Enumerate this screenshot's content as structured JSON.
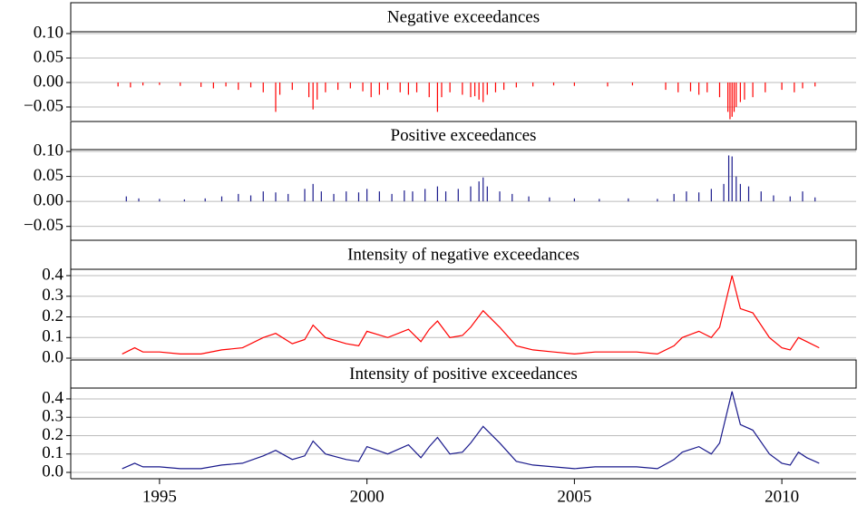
{
  "chart_data": [
    {
      "type": "spike",
      "title": "Negative exceedances",
      "color": "#ff0000",
      "grid": true,
      "xlim": [
        1992.86,
        2011.79
      ],
      "ylim": [
        -0.0778,
        0.1037
      ],
      "yticks": [
        {
          "value": 0.1,
          "label": "0.10"
        },
        0.05,
        {
          "value": 0,
          "label": "0.00"
        },
        {
          "value": -0.05,
          "label": "−0.05"
        }
      ],
      "x": [
        1994.0,
        1994.3,
        1994.6,
        1995.0,
        1995.5,
        1996.0,
        1996.3,
        1996.6,
        1996.9,
        1997.2,
        1997.5,
        1997.8,
        1997.9,
        1998.2,
        1998.6,
        1998.7,
        1998.8,
        1999.0,
        1999.3,
        1999.6,
        1999.9,
        2000.1,
        2000.3,
        2000.5,
        2000.8,
        2001.0,
        2001.2,
        2001.5,
        2001.7,
        2001.8,
        2002.0,
        2002.3,
        2002.5,
        2002.6,
        2002.7,
        2002.8,
        2002.9,
        2003.1,
        2003.3,
        2003.6,
        2004.0,
        2004.5,
        2005.0,
        2005.8,
        2006.4,
        2007.2,
        2007.5,
        2007.8,
        2008.0,
        2008.2,
        2008.5,
        2008.7,
        2008.75,
        2008.8,
        2008.85,
        2008.9,
        2009.0,
        2009.1,
        2009.3,
        2009.6,
        2010.0,
        2010.3,
        2010.5,
        2010.8
      ],
      "values": [
        -0.008,
        -0.01,
        -0.006,
        -0.005,
        -0.007,
        -0.009,
        -0.012,
        -0.008,
        -0.015,
        -0.01,
        -0.02,
        -0.06,
        -0.025,
        -0.015,
        -0.03,
        -0.055,
        -0.035,
        -0.02,
        -0.015,
        -0.012,
        -0.018,
        -0.03,
        -0.025,
        -0.015,
        -0.02,
        -0.025,
        -0.02,
        -0.03,
        -0.06,
        -0.03,
        -0.02,
        -0.025,
        -0.03,
        -0.028,
        -0.035,
        -0.04,
        -0.025,
        -0.02,
        -0.015,
        -0.01,
        -0.008,
        -0.006,
        -0.007,
        -0.008,
        -0.006,
        -0.015,
        -0.02,
        -0.018,
        -0.025,
        -0.02,
        -0.03,
        -0.06,
        -0.075,
        -0.07,
        -0.06,
        -0.05,
        -0.04,
        -0.035,
        -0.03,
        -0.02,
        -0.015,
        -0.02,
        -0.012,
        -0.008
      ]
    },
    {
      "type": "spike",
      "title": "Positive exceedances",
      "color": "#1a1a8c",
      "grid": true,
      "xlim": [
        1992.86,
        2011.79
      ],
      "ylim": [
        -0.0778,
        0.1037
      ],
      "yticks": [
        {
          "value": 0.1,
          "label": "0.10"
        },
        0.05,
        {
          "value": 0,
          "label": "0.00"
        },
        {
          "value": -0.05,
          "label": "−0.05"
        }
      ],
      "x": [
        1994.2,
        1994.5,
        1995.0,
        1995.6,
        1996.1,
        1996.5,
        1996.9,
        1997.2,
        1997.5,
        1997.8,
        1998.1,
        1998.5,
        1998.7,
        1998.9,
        1999.2,
        1999.5,
        1999.8,
        2000.0,
        2000.3,
        2000.6,
        2000.9,
        2001.1,
        2001.4,
        2001.7,
        2001.9,
        2002.2,
        2002.5,
        2002.7,
        2002.8,
        2002.9,
        2003.2,
        2003.5,
        2003.9,
        2004.4,
        2005.0,
        2005.6,
        2006.3,
        2007.0,
        2007.4,
        2007.7,
        2008.0,
        2008.3,
        2008.6,
        2008.72,
        2008.8,
        2008.9,
        2009.0,
        2009.2,
        2009.5,
        2009.8,
        2010.2,
        2010.5,
        2010.8
      ],
      "values": [
        0.01,
        0.006,
        0.005,
        0.004,
        0.006,
        0.01,
        0.015,
        0.012,
        0.02,
        0.018,
        0.015,
        0.025,
        0.035,
        0.02,
        0.015,
        0.02,
        0.018,
        0.025,
        0.02,
        0.015,
        0.022,
        0.02,
        0.025,
        0.03,
        0.02,
        0.025,
        0.03,
        0.04,
        0.048,
        0.03,
        0.02,
        0.015,
        0.01,
        0.008,
        0.006,
        0.005,
        0.006,
        0.005,
        0.015,
        0.02,
        0.018,
        0.025,
        0.035,
        0.092,
        0.09,
        0.05,
        0.035,
        0.03,
        0.02,
        0.012,
        0.01,
        0.02,
        0.008
      ]
    },
    {
      "type": "line",
      "title": "Intensity of negative exceedances",
      "color": "#ff0000",
      "grid": true,
      "xlim": [
        1992.86,
        2011.79
      ],
      "ylim": [
        -0.0044,
        0.4308
      ],
      "yticks": [
        0.4,
        0.3,
        0.2,
        0.1,
        {
          "value": 0,
          "label": "0.0"
        }
      ],
      "x": [
        1994.1,
        1994.4,
        1994.6,
        1995.0,
        1995.5,
        1996.0,
        1996.5,
        1997.0,
        1997.5,
        1997.8,
        1998.2,
        1998.5,
        1998.7,
        1999.0,
        1999.5,
        1999.8,
        2000.0,
        2000.5,
        2001.0,
        2001.3,
        2001.5,
        2001.7,
        2002.0,
        2002.3,
        2002.5,
        2002.8,
        2003.2,
        2003.6,
        2004.0,
        2004.5,
        2005.0,
        2005.5,
        2006.0,
        2006.5,
        2007.0,
        2007.4,
        2007.6,
        2008.0,
        2008.3,
        2008.5,
        2008.8,
        2009.0,
        2009.3,
        2009.7,
        2010.0,
        2010.2,
        2010.4,
        2010.6,
        2010.9
      ],
      "values": [
        0.02,
        0.05,
        0.03,
        0.03,
        0.02,
        0.02,
        0.04,
        0.05,
        0.1,
        0.12,
        0.07,
        0.09,
        0.16,
        0.1,
        0.07,
        0.06,
        0.13,
        0.1,
        0.14,
        0.08,
        0.14,
        0.18,
        0.1,
        0.11,
        0.15,
        0.23,
        0.15,
        0.06,
        0.04,
        0.03,
        0.02,
        0.03,
        0.03,
        0.03,
        0.02,
        0.06,
        0.1,
        0.13,
        0.1,
        0.15,
        0.4,
        0.24,
        0.22,
        0.1,
        0.05,
        0.04,
        0.1,
        0.08,
        0.05
      ]
    },
    {
      "type": "line",
      "title": "Intensity of positive exceedances",
      "color": "#1a1a8c",
      "grid": true,
      "xlim": [
        1992.86,
        2011.79
      ],
      "ylim": [
        -0.0346,
        0.459
      ],
      "yticks": [
        0.4,
        0.3,
        0.2,
        0.1,
        {
          "value": 0,
          "label": "0.0"
        }
      ],
      "xticks": [
        1995,
        2000,
        2005,
        2010
      ],
      "x": [
        1994.1,
        1994.4,
        1994.6,
        1995.0,
        1995.5,
        1996.0,
        1996.5,
        1997.0,
        1997.5,
        1997.8,
        1998.2,
        1998.5,
        1998.7,
        1999.0,
        1999.5,
        1999.8,
        2000.0,
        2000.5,
        2001.0,
        2001.3,
        2001.5,
        2001.7,
        2002.0,
        2002.3,
        2002.5,
        2002.8,
        2003.2,
        2003.6,
        2004.0,
        2004.5,
        2005.0,
        2005.5,
        2006.0,
        2006.5,
        2007.0,
        2007.4,
        2007.6,
        2008.0,
        2008.3,
        2008.5,
        2008.8,
        2009.0,
        2009.3,
        2009.7,
        2010.0,
        2010.2,
        2010.4,
        2010.6,
        2010.9
      ],
      "values": [
        0.02,
        0.05,
        0.03,
        0.03,
        0.02,
        0.02,
        0.04,
        0.05,
        0.09,
        0.12,
        0.07,
        0.09,
        0.17,
        0.1,
        0.07,
        0.06,
        0.14,
        0.1,
        0.15,
        0.08,
        0.14,
        0.19,
        0.1,
        0.11,
        0.16,
        0.25,
        0.16,
        0.06,
        0.04,
        0.03,
        0.02,
        0.03,
        0.03,
        0.03,
        0.02,
        0.07,
        0.11,
        0.14,
        0.1,
        0.16,
        0.44,
        0.26,
        0.23,
        0.1,
        0.05,
        0.04,
        0.11,
        0.08,
        0.05
      ]
    }
  ]
}
